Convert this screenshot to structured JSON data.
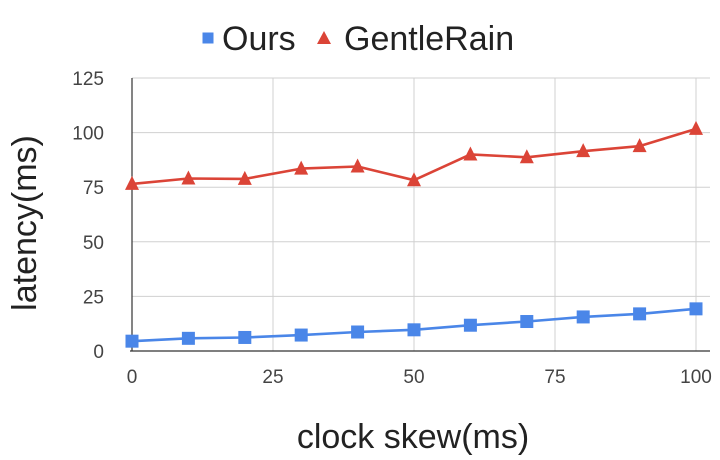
{
  "chart_data": {
    "type": "line",
    "title": "",
    "xlabel": "clock skew(ms)",
    "ylabel": "latency(ms)",
    "xlim": [
      0,
      100
    ],
    "ylim": [
      0,
      125
    ],
    "xticks": [
      "0",
      "25",
      "50",
      "75",
      "100"
    ],
    "yticks": [
      "0",
      "25",
      "50",
      "75",
      "100",
      "125"
    ],
    "grid": true,
    "legend": "top-center",
    "x": [
      0,
      10,
      20,
      30,
      40,
      50,
      60,
      70,
      80,
      90,
      100
    ],
    "series": [
      {
        "name": "Ours",
        "color": "#4a86e8",
        "marker": "square",
        "values": [
          4.5,
          5.8,
          6.2,
          7.3,
          8.7,
          9.7,
          11.8,
          13.5,
          15.6,
          17.0,
          19.3
        ]
      },
      {
        "name": "GentleRain",
        "color": "#db4437",
        "marker": "triangle",
        "values": [
          76.5,
          79,
          78.8,
          83.5,
          84.5,
          78.2,
          90,
          88.7,
          91.5,
          93.8,
          101.7
        ]
      }
    ]
  }
}
